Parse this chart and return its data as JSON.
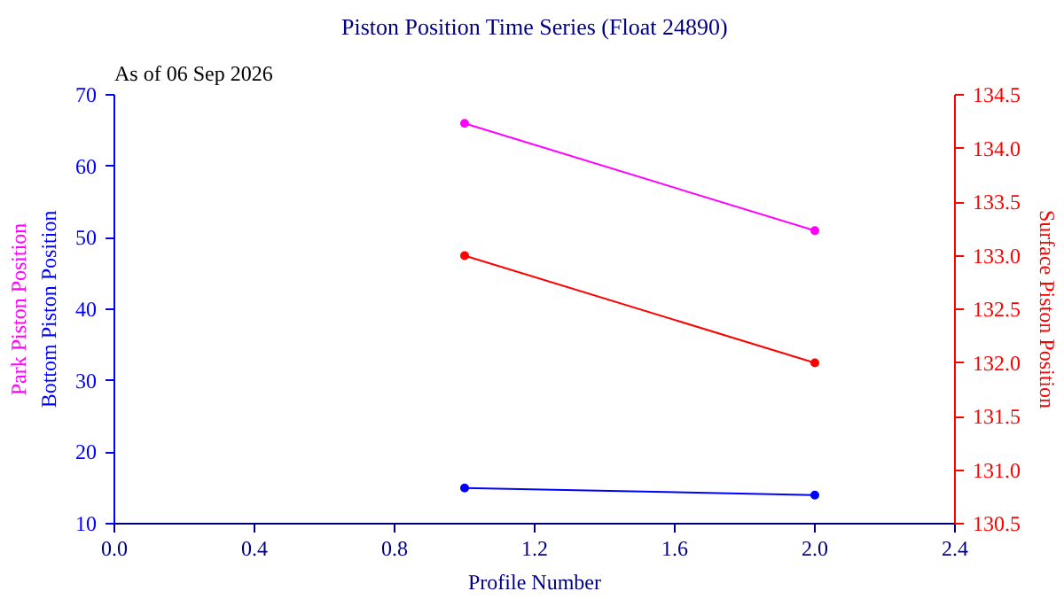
{
  "chart_data": {
    "type": "line",
    "title": "Piston Position Time Series (Float 24890)",
    "annotations": [
      "As of 06 Sep 2026"
    ],
    "xlabel": "Profile Number",
    "x": [
      1,
      2
    ],
    "series": [
      {
        "name": "Park Piston Position",
        "color": "#ff00ff",
        "values": [
          66,
          51
        ]
      },
      {
        "name": "Bottom Piston Position",
        "color": "#0000ff",
        "values": [
          15,
          14
        ]
      },
      {
        "name": "Surface Piston Position",
        "color": "#ff0000",
        "values": [
          133.0,
          132.0
        ],
        "axis": "y2"
      }
    ],
    "xlim": [
      0,
      2.4
    ],
    "xticks": [
      {
        "value": 0,
        "label": "0.0"
      },
      {
        "value": 0.4,
        "label": "0.4"
      },
      {
        "value": 0.8,
        "label": "0.8"
      },
      {
        "value": 1.2,
        "label": "1.2"
      },
      {
        "value": 1.6,
        "label": "1.6"
      },
      {
        "value": 2.0,
        "label": "2.0"
      },
      {
        "value": 2.4,
        "label": "2.4"
      }
    ],
    "ylim": [
      10,
      70
    ],
    "yticks": [
      10,
      20,
      30,
      40,
      50,
      60,
      70
    ],
    "y2lim": [
      130.5,
      134.5
    ],
    "y2ticks": [
      {
        "value": 130.5,
        "label": "130.5"
      },
      {
        "value": 131,
        "label": "131.0"
      },
      {
        "value": 131.5,
        "label": "131.5"
      },
      {
        "value": 132,
        "label": "132.0"
      },
      {
        "value": 132.5,
        "label": "132.5"
      },
      {
        "value": 133,
        "label": "133.0"
      },
      {
        "value": 133.5,
        "label": "133.5"
      },
      {
        "value": 134,
        "label": "134.0"
      },
      {
        "value": 134.5,
        "label": "134.5"
      }
    ],
    "marker": "circle",
    "grid": false
  }
}
